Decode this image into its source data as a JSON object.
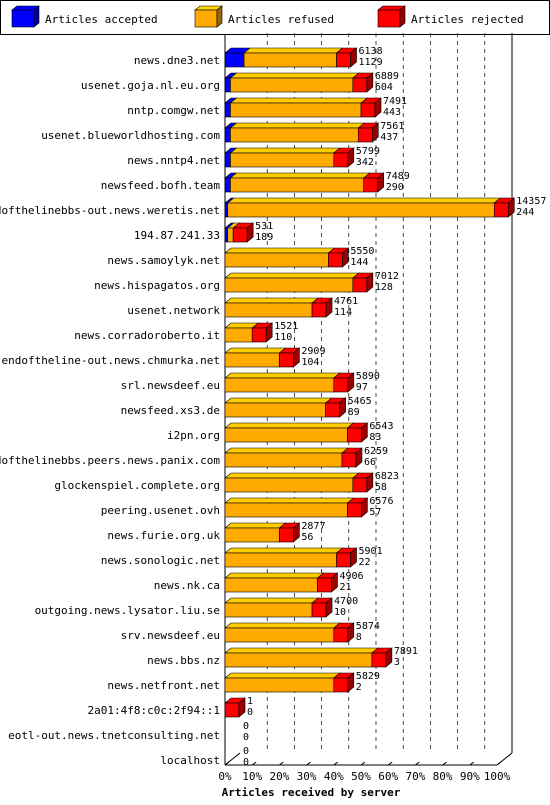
{
  "chart_data": {
    "type": "bar",
    "orientation": "horizontal",
    "stacked": true,
    "title": "Articles received by server",
    "xlabel": "Articles received by server",
    "ylabel": "",
    "xlim": [
      0,
      100
    ],
    "x_unit": "%",
    "x_ticks": [
      "0%",
      "10%",
      "20%",
      "30%",
      "40%",
      "50%",
      "60%",
      "70%",
      "80%",
      "90%",
      "100%"
    ],
    "grid": true,
    "legend_position": "top",
    "series": [
      {
        "name": "Articles accepted",
        "color": "#0000ff"
      },
      {
        "name": "Articles refused",
        "color": "#ffaa00"
      },
      {
        "name": "Articles rejected",
        "color": "#ff0000"
      }
    ],
    "categories": [
      "news.dne3.net",
      "usenet.goja.nl.eu.org",
      "nntp.comgw.net",
      "usenet.blueworldhosting.com",
      "news.nntp4.net",
      "newsfeed.bofh.team",
      "endofthelinebbs-out.news.weretis.net",
      "194.87.241.33",
      "news.samoylyk.net",
      "news.hispagatos.org",
      "usenet.network",
      "news.corradoroberto.it",
      "endoftheline-out.news.chmurka.net",
      "srl.newsdeef.eu",
      "newsfeed.xs3.de",
      "i2pn.org",
      "endofthelinebbs.peers.news.panix.com",
      "glockenspiel.complete.org",
      "peering.usenet.ovh",
      "news.furie.org.uk",
      "news.sonologic.net",
      "news.nk.ca",
      "outgoing.news.lysator.liu.se",
      "srv.newsdeef.eu",
      "news.bbs.nz",
      "news.netfront.net",
      "2a01:4f8:c0c:2f94::1",
      "eotl-out.news.tnetconsulting.net",
      "localhost"
    ],
    "total_labels": [
      6138,
      6889,
      7491,
      7561,
      5799,
      7489,
      14357,
      531,
      5550,
      7012,
      4761,
      1521,
      2909,
      5890,
      5465,
      6543,
      6259,
      6823,
      6576,
      2877,
      5901,
      4906,
      4700,
      5874,
      7891,
      5829,
      1,
      0,
      0
    ],
    "second_labels": [
      1129,
      604,
      443,
      437,
      342,
      290,
      244,
      189,
      144,
      128,
      114,
      110,
      104,
      97,
      89,
      83,
      66,
      58,
      57,
      56,
      22,
      21,
      10,
      8,
      3,
      2,
      0,
      0,
      0
    ],
    "accepted_pct": [
      7,
      2,
      2,
      2,
      2,
      2,
      1,
      1,
      0,
      0,
      0,
      0,
      0,
      0,
      0,
      0,
      0,
      0,
      0,
      0,
      0,
      0,
      0,
      0,
      0,
      0,
      0,
      0,
      0
    ],
    "refused_pct": [
      34,
      45,
      48,
      47,
      38,
      49,
      98,
      2,
      38,
      47,
      32,
      10,
      20,
      40,
      37,
      45,
      43,
      47,
      45,
      20,
      41,
      34,
      32,
      40,
      54,
      40,
      0,
      0,
      0
    ],
    "rejected_pct": [
      0.8,
      0.4,
      0.3,
      0.3,
      0.2,
      0.2,
      0.2,
      0.1,
      0.1,
      0.1,
      0.1,
      0.1,
      0.1,
      0.1,
      0.1,
      0.1,
      0,
      0,
      0,
      0,
      0,
      0,
      0,
      0,
      0,
      0,
      0,
      0,
      0
    ]
  }
}
